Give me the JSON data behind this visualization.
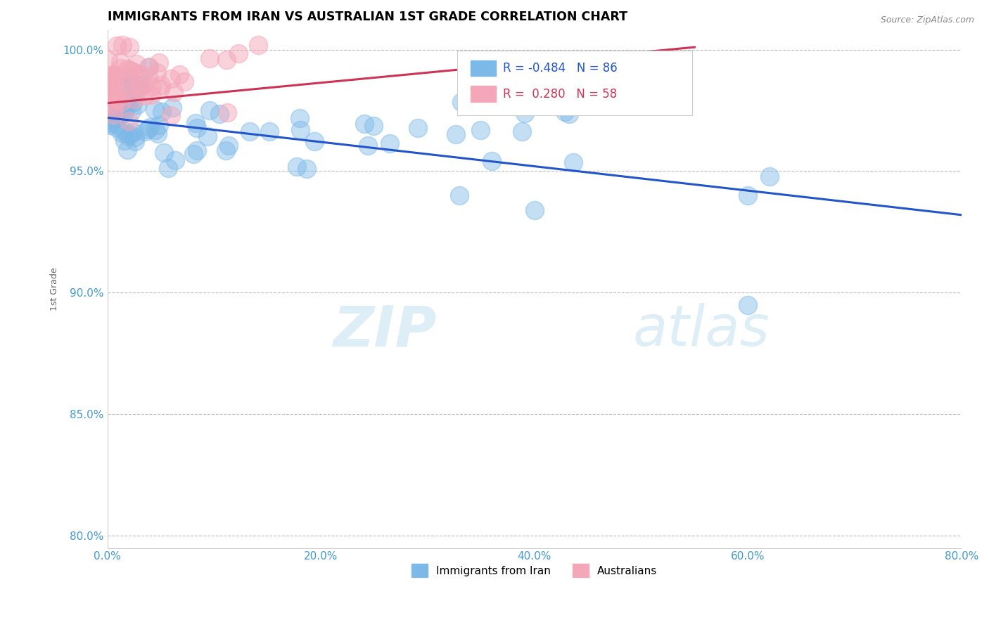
{
  "title": "IMMIGRANTS FROM IRAN VS AUSTRALIAN 1ST GRADE CORRELATION CHART",
  "source_text": "Source: ZipAtlas.com",
  "ylabel": "1st Grade",
  "watermark_zip": "ZIP",
  "watermark_atlas": "atlas",
  "xlim": [
    0.0,
    0.8
  ],
  "ylim": [
    0.795,
    1.008
  ],
  "xtick_labels": [
    "0.0%",
    "20.0%",
    "40.0%",
    "60.0%",
    "80.0%"
  ],
  "xtick_values": [
    0.0,
    0.2,
    0.4,
    0.6,
    0.8
  ],
  "ytick_labels": [
    "80.0%",
    "85.0%",
    "90.0%",
    "95.0%",
    "100.0%"
  ],
  "ytick_values": [
    0.8,
    0.85,
    0.9,
    0.95,
    1.0
  ],
  "legend_labels": [
    "Immigrants from Iran",
    "Australians"
  ],
  "blue_color": "#7cb9e8",
  "pink_color": "#f4a7b9",
  "blue_line_color": "#2255cc",
  "pink_line_color": "#cc3355",
  "R_blue": -0.484,
  "N_blue": 86,
  "R_pink": 0.28,
  "N_pink": 58,
  "blue_line_x0": 0.0,
  "blue_line_y0": 0.972,
  "blue_line_x1": 0.8,
  "blue_line_y1": 0.932,
  "pink_line_x0": 0.0,
  "pink_line_y0": 0.978,
  "pink_line_x1": 0.55,
  "pink_line_y1": 1.001
}
